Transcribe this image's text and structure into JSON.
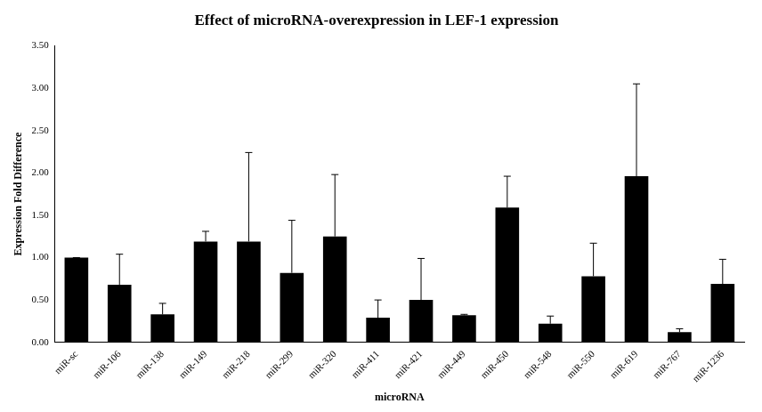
{
  "chart_data": {
    "type": "bar",
    "title": "Effect of microRNA-overexpression in LEF-1 expression",
    "x_label": "microRNA",
    "y_label": "Expression Fold Difference",
    "categories": [
      "miR-sc",
      "miR-106",
      "miR-138",
      "miR-149",
      "miR-218",
      "miR-299",
      "miR-320",
      "miR-411",
      "miR-421",
      "miR-449",
      "miR-450",
      "miR-548",
      "miR-550",
      "miR-619",
      "miR-767",
      "miR-1236"
    ],
    "values": [
      1.0,
      0.68,
      0.33,
      1.19,
      1.19,
      0.82,
      1.25,
      0.29,
      0.5,
      0.32,
      1.59,
      0.22,
      0.78,
      1.96,
      0.12,
      0.69
    ],
    "errors": [
      0,
      0.36,
      0.13,
      0.12,
      1.05,
      0.62,
      0.73,
      0.21,
      0.49,
      0.01,
      0.37,
      0.09,
      0.39,
      1.09,
      0.04,
      0.29
    ],
    "color": "#000000",
    "ylim": [
      0,
      3.5
    ],
    "yticks": [
      {
        "value": 0,
        "label": "0.00"
      },
      {
        "value": 0.5,
        "label": "0.50"
      },
      {
        "value": 1,
        "label": "1.00"
      },
      {
        "value": 1.5,
        "label": "1.50"
      },
      {
        "value": 2,
        "label": "2.00"
      },
      {
        "value": 2.5,
        "label": "2.50"
      },
      {
        "value": 3,
        "label": "3.00"
      },
      {
        "value": 3.5,
        "label": "3.50"
      }
    ],
    "grid": false
  }
}
